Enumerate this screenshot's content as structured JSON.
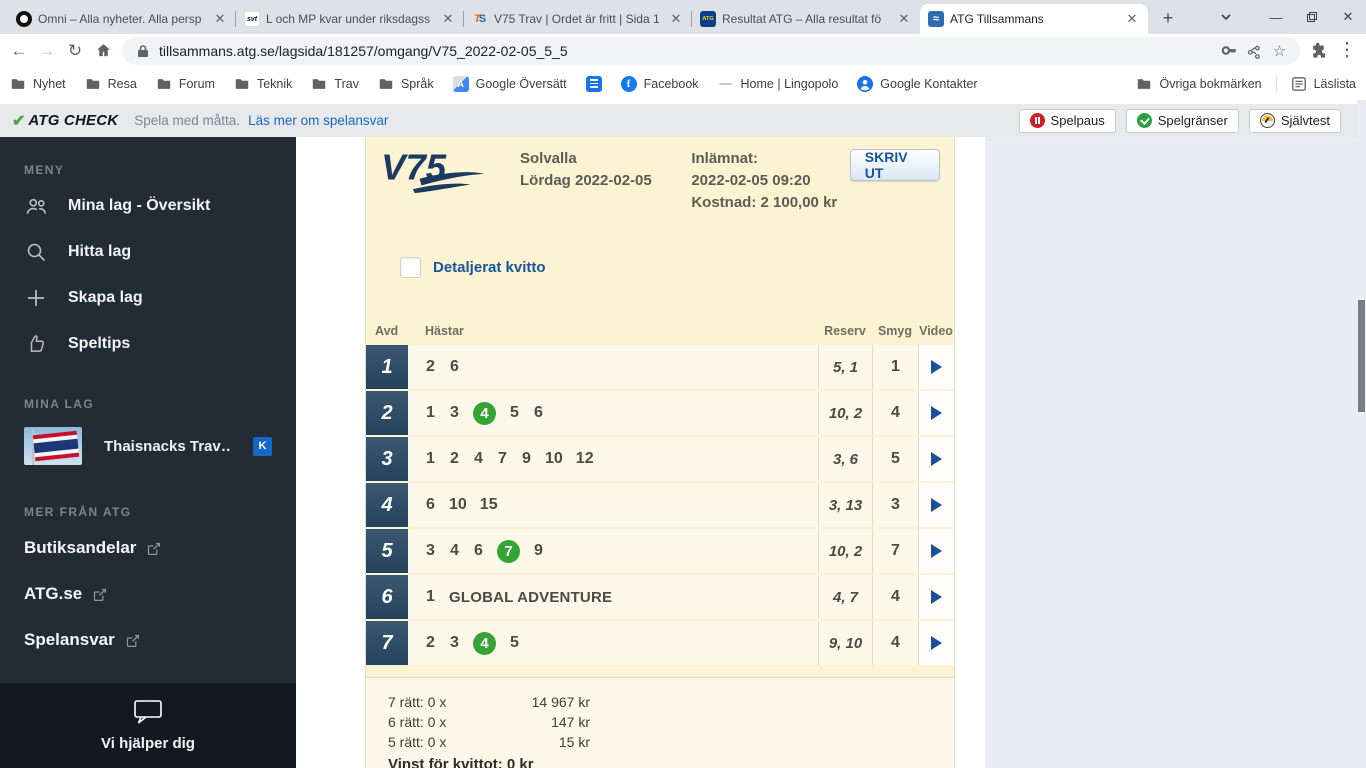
{
  "colors": {
    "accent_blue": "#15549f",
    "link_blue": "#1769c7",
    "green_circle": "#35a435",
    "play_blue": "#1d4f9e",
    "avd_cell": "#2e4a63",
    "card_bg": "#fcf3d3",
    "row_bg": "#fbf8e9",
    "sidebar_bg": "#232b35",
    "badge_blue": "#1467c6",
    "spelpaus_red": "#cd2026",
    "spelgranser_green": "#2d9e41"
  },
  "browser": {
    "tabs": [
      {
        "title": "Omni – Alla nyheter. Alla persp",
        "favicon": "omni",
        "active": false
      },
      {
        "title": "L och MP kvar under riksdagss",
        "favicon": "svt",
        "active": false
      },
      {
        "title": "V75 Trav | Ordet är fritt | Sida 1",
        "favicon": "ts",
        "active": false
      },
      {
        "title": "Resultat ATG – Alla resultat fö",
        "favicon": "atg",
        "active": false
      },
      {
        "title": "ATG Tillsammans",
        "favicon": "atgt",
        "active": true
      }
    ],
    "new_tab_label": "+",
    "url": "tillsammans.atg.se/lagsida/181257/omgang/V75_2022-02-05_5_5",
    "bookmarks_left": [
      {
        "label": "Nyhet",
        "icon": "folder"
      },
      {
        "label": "Resa",
        "icon": "folder"
      },
      {
        "label": "Forum",
        "icon": "folder"
      },
      {
        "label": "Teknik",
        "icon": "folder"
      },
      {
        "label": "Trav",
        "icon": "folder"
      },
      {
        "label": "Språk",
        "icon": "folder"
      },
      {
        "label": "Google Översätt",
        "icon": "translate"
      },
      {
        "label": "",
        "icon": "doc"
      },
      {
        "label": "Facebook",
        "icon": "facebook"
      },
      {
        "label": "Home | Lingopolo",
        "icon": "dash"
      },
      {
        "label": "Google Kontakter",
        "icon": "contacts"
      }
    ],
    "bookmarks_right": [
      {
        "label": "Övriga bokmärken",
        "icon": "folder"
      },
      {
        "label": "Läslista",
        "icon": "readinglist"
      }
    ]
  },
  "atg_bar": {
    "check_mark": "✔",
    "brand": "ATG CHECK",
    "tagline": "Spela med måtta.",
    "link": "Läs mer om spelansvar",
    "buttons": [
      {
        "label": "Spelpaus",
        "icon": "pause-icon"
      },
      {
        "label": "Spelgränser",
        "icon": "limits-icon"
      },
      {
        "label": "Självtest",
        "icon": "gauge-icon"
      }
    ]
  },
  "sidebar": {
    "menu_header": "MENY",
    "menu_items": [
      {
        "label": "Mina lag - Översikt",
        "icon": "people"
      },
      {
        "label": "Hitta lag",
        "icon": "search"
      },
      {
        "label": "Skapa lag",
        "icon": "plus"
      },
      {
        "label": "Speltips",
        "icon": "thumb"
      }
    ],
    "my_teams_header": "MINA LAG",
    "team": {
      "name": "Thaisnacks Trav…",
      "badge": "K"
    },
    "more_header": "MER FRÅN ATG",
    "external_links": [
      "Butiksandelar",
      "ATG.se",
      "Spelansvar"
    ],
    "help_text": "Vi hjälper dig"
  },
  "receipt": {
    "logo": "V75",
    "track": "Solvalla",
    "date": "Lördag 2022-02-05",
    "submitted_label": "Inlämnat:",
    "submitted_value": "2022-02-05 09:20",
    "cost_label": "Kostnad: 2 100,00 kr",
    "print_button": "SKRIV UT",
    "detailed_label": "Detaljerat kvitto",
    "checkbox_checked": false,
    "table": {
      "headers": [
        "Avd",
        "Hästar",
        "Reserv",
        "Smyg",
        "Video"
      ],
      "rows": [
        {
          "avd": "1",
          "horses": [
            "2",
            "6"
          ],
          "circled": [],
          "name": "",
          "reserv": "5, 1",
          "smyg": "1"
        },
        {
          "avd": "2",
          "horses": [
            "1",
            "3",
            "4",
            "5",
            "6"
          ],
          "circled": [
            "4"
          ],
          "name": "",
          "reserv": "10, 2",
          "smyg": "4"
        },
        {
          "avd": "3",
          "horses": [
            "1",
            "2",
            "4",
            "7",
            "9",
            "10",
            "12"
          ],
          "circled": [],
          "name": "",
          "reserv": "3, 6",
          "smyg": "5"
        },
        {
          "avd": "4",
          "horses": [
            "6",
            "10",
            "15"
          ],
          "circled": [],
          "name": "",
          "reserv": "3, 13",
          "smyg": "3"
        },
        {
          "avd": "5",
          "horses": [
            "3",
            "4",
            "6",
            "7",
            "9"
          ],
          "circled": [
            "7"
          ],
          "name": "",
          "reserv": "10, 2",
          "smyg": "7"
        },
        {
          "avd": "6",
          "horses": [
            "1"
          ],
          "circled": [],
          "name": "GLOBAL ADVENTURE",
          "reserv": "4, 7",
          "smyg": "4"
        },
        {
          "avd": "7",
          "horses": [
            "2",
            "3",
            "4",
            "5"
          ],
          "circled": [
            "4"
          ],
          "name": "",
          "reserv": "9, 10",
          "smyg": "4"
        }
      ]
    },
    "totals": [
      {
        "label": "7 rätt: 0 x",
        "amount": "14 967 kr"
      },
      {
        "label": "6 rätt: 0 x",
        "amount": "147 kr"
      },
      {
        "label": "5 rätt: 0 x",
        "amount": "15 kr"
      }
    ],
    "win_total": "Vinst för kvittot: 0 kr"
  }
}
